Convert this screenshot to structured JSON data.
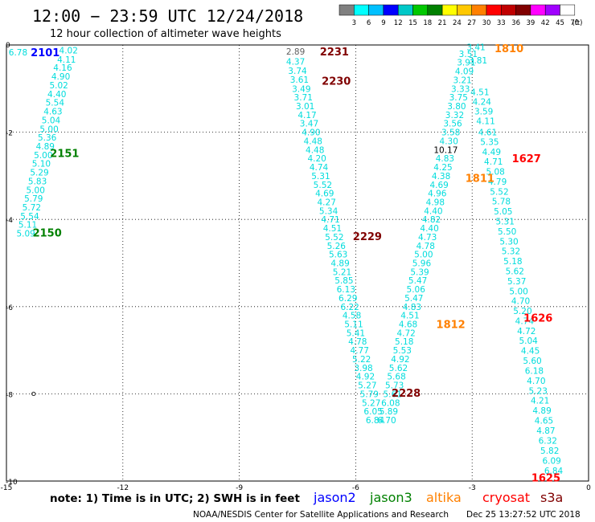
{
  "header": {
    "title": "12:00 − 23:59 UTC 12/24/2018",
    "subtitle": "12 hour collection of altimeter wave heights"
  },
  "colorbar": {
    "colors": [
      "#808080",
      "#00ffff",
      "#00c0ff",
      "#0000ff",
      "#00c8c8",
      "#00c800",
      "#008000",
      "#ffff00",
      "#ffc800",
      "#ff8000",
      "#ff0000",
      "#c00000",
      "#800000",
      "#ff00ff",
      "#a000ff",
      "#ffffff"
    ],
    "labels": [
      "3",
      "6",
      "9",
      "12",
      "15",
      "18",
      "21",
      "24",
      "27",
      "30",
      "33",
      "36",
      "39",
      "42",
      "45",
      "70"
    ],
    "unit": "(ft)"
  },
  "chart_data": {
    "type": "scatter",
    "title": "12 hour collection of altimeter wave heights",
    "xlim": [
      -15,
      0
    ],
    "ylim": [
      -10,
      0
    ],
    "xticks": [
      -15,
      -12,
      -9,
      -6,
      -3,
      0
    ],
    "yticks": [
      0,
      -2,
      -4,
      -6,
      -8,
      -10
    ],
    "grid": true,
    "colors": {
      "jason2": "#0000ff",
      "jason3": "#008000",
      "altika": "#ff8000",
      "cryosat": "#ff0000",
      "s3a": "#800000",
      "swh": "#00dcdc",
      "swh_dark": "#606060",
      "swh_black": "#000000"
    },
    "tracks": [
      {
        "label": "2101",
        "satellite": "jason2",
        "x": -14.0,
        "y": -0.17
      },
      {
        "label": "2151",
        "satellite": "jason3",
        "x": -13.5,
        "y": -2.48
      },
      {
        "label": "2150",
        "satellite": "jason3",
        "x": -13.95,
        "y": -4.3
      },
      {
        "label": "2231",
        "satellite": "s3a",
        "x": -6.55,
        "y": -0.15
      },
      {
        "label": "2230",
        "satellite": "s3a",
        "x": -6.5,
        "y": -0.82
      },
      {
        "label": "2229",
        "satellite": "s3a",
        "x": -5.7,
        "y": -4.38
      },
      {
        "label": "2228",
        "satellite": "s3a",
        "x": -4.7,
        "y": -7.97
      },
      {
        "label": "1810",
        "satellite": "altika",
        "x": -2.05,
        "y": -0.07
      },
      {
        "label": "1811",
        "satellite": "altika",
        "x": -2.8,
        "y": -3.05
      },
      {
        "label": "1812",
        "satellite": "altika",
        "x": -3.55,
        "y": -6.4
      },
      {
        "label": "1627",
        "satellite": "cryosat",
        "x": -1.6,
        "y": -2.6
      },
      {
        "label": "1626",
        "satellite": "cryosat",
        "x": -1.3,
        "y": -6.25
      },
      {
        "label": "1625",
        "satellite": "cryosat",
        "x": -1.1,
        "y": -9.92
      }
    ],
    "points": [
      {
        "x": -14.7,
        "y": -0.17,
        "v": "6.78",
        "c": "swh"
      },
      {
        "x": -13.4,
        "y": -0.12,
        "v": "4.02",
        "c": "swh"
      },
      {
        "x": -13.45,
        "y": -0.33,
        "v": "4.11",
        "c": "swh"
      },
      {
        "x": -13.55,
        "y": -0.52,
        "v": "4.16",
        "c": "swh"
      },
      {
        "x": -13.6,
        "y": -0.72,
        "v": "4.90",
        "c": "swh"
      },
      {
        "x": -13.65,
        "y": -0.92,
        "v": "5.02",
        "c": "swh"
      },
      {
        "x": -13.7,
        "y": -1.12,
        "v": "4.40",
        "c": "swh"
      },
      {
        "x": -13.75,
        "y": -1.32,
        "v": "5.54",
        "c": "swh"
      },
      {
        "x": -13.8,
        "y": -1.52,
        "v": "4.63",
        "c": "swh"
      },
      {
        "x": -13.85,
        "y": -1.72,
        "v": "5.04",
        "c": "swh"
      },
      {
        "x": -13.9,
        "y": -1.92,
        "v": "5.00",
        "c": "swh"
      },
      {
        "x": -13.95,
        "y": -2.12,
        "v": "5.36",
        "c": "swh"
      },
      {
        "x": -14.0,
        "y": -2.32,
        "v": "4.89",
        "c": "swh"
      },
      {
        "x": -14.05,
        "y": -2.52,
        "v": "5.00",
        "c": "swh"
      },
      {
        "x": -14.1,
        "y": -2.72,
        "v": "5.10",
        "c": "swh"
      },
      {
        "x": -14.15,
        "y": -2.92,
        "v": "5.29",
        "c": "swh"
      },
      {
        "x": -14.2,
        "y": -3.12,
        "v": "5.83",
        "c": "swh"
      },
      {
        "x": -14.25,
        "y": -3.32,
        "v": "5.00",
        "c": "swh"
      },
      {
        "x": -14.3,
        "y": -3.52,
        "v": "5.79",
        "c": "swh"
      },
      {
        "x": -14.35,
        "y": -3.72,
        "v": "5.72",
        "c": "swh"
      },
      {
        "x": -14.4,
        "y": -3.92,
        "v": "5.54",
        "c": "swh"
      },
      {
        "x": -14.45,
        "y": -4.12,
        "v": "5.11",
        "c": "swh"
      },
      {
        "x": -14.5,
        "y": -4.32,
        "v": "5.09",
        "c": "swh"
      },
      {
        "x": -7.55,
        "y": -0.15,
        "v": "2.89",
        "c": "swh_dark"
      },
      {
        "x": -7.55,
        "y": -0.38,
        "v": "4.37",
        "c": "swh"
      },
      {
        "x": -7.5,
        "y": -0.59,
        "v": "3.74",
        "c": "swh"
      },
      {
        "x": -7.45,
        "y": -0.79,
        "v": "3.61",
        "c": "swh"
      },
      {
        "x": -7.4,
        "y": -1.0,
        "v": "3.49",
        "c": "swh"
      },
      {
        "x": -7.35,
        "y": -1.2,
        "v": "3.71",
        "c": "swh"
      },
      {
        "x": -7.3,
        "y": -1.4,
        "v": "3.01",
        "c": "swh"
      },
      {
        "x": -7.25,
        "y": -1.6,
        "v": "4.17",
        "c": "swh"
      },
      {
        "x": -7.2,
        "y": -1.8,
        "v": "3.47",
        "c": "swh"
      },
      {
        "x": -7.15,
        "y": -2.0,
        "v": "4.90",
        "c": "swh"
      },
      {
        "x": -7.1,
        "y": -2.2,
        "v": "4.48",
        "c": "swh"
      },
      {
        "x": -7.05,
        "y": -2.4,
        "v": "4.48",
        "c": "swh"
      },
      {
        "x": -7.0,
        "y": -2.6,
        "v": "4.20",
        "c": "swh"
      },
      {
        "x": -6.95,
        "y": -2.8,
        "v": "4.74",
        "c": "swh"
      },
      {
        "x": -6.9,
        "y": -3.0,
        "v": "5.31",
        "c": "swh"
      },
      {
        "x": -6.85,
        "y": -3.2,
        "v": "5.52",
        "c": "swh"
      },
      {
        "x": -6.8,
        "y": -3.4,
        "v": "4.69",
        "c": "swh"
      },
      {
        "x": -6.75,
        "y": -3.6,
        "v": "4.27",
        "c": "swh"
      },
      {
        "x": -6.7,
        "y": -3.8,
        "v": "5.34",
        "c": "swh"
      },
      {
        "x": -6.65,
        "y": -4.0,
        "v": "4.71",
        "c": "swh"
      },
      {
        "x": -6.6,
        "y": -4.2,
        "v": "4.51",
        "c": "swh"
      },
      {
        "x": -6.55,
        "y": -4.4,
        "v": "5.52",
        "c": "swh"
      },
      {
        "x": -6.5,
        "y": -4.6,
        "v": "5.26",
        "c": "swh"
      },
      {
        "x": -6.45,
        "y": -4.8,
        "v": "5.63",
        "c": "swh"
      },
      {
        "x": -6.4,
        "y": -5.0,
        "v": "4.89",
        "c": "swh"
      },
      {
        "x": -6.35,
        "y": -5.2,
        "v": "5.21",
        "c": "swh"
      },
      {
        "x": -6.3,
        "y": -5.4,
        "v": "5.85",
        "c": "swh"
      },
      {
        "x": -6.25,
        "y": -5.6,
        "v": "6.13",
        "c": "swh"
      },
      {
        "x": -6.2,
        "y": -5.8,
        "v": "6.29",
        "c": "swh"
      },
      {
        "x": -6.15,
        "y": -6.0,
        "v": "6.22",
        "c": "swh"
      },
      {
        "x": -6.1,
        "y": -6.2,
        "v": "4.58",
        "c": "swh"
      },
      {
        "x": -6.05,
        "y": -6.4,
        "v": "5.11",
        "c": "swh"
      },
      {
        "x": -6.0,
        "y": -6.6,
        "v": "5.41",
        "c": "swh"
      },
      {
        "x": -5.95,
        "y": -6.8,
        "v": "4.78",
        "c": "swh"
      },
      {
        "x": -5.9,
        "y": -7.0,
        "v": "4.77",
        "c": "swh"
      },
      {
        "x": -5.85,
        "y": -7.2,
        "v": "5.22",
        "c": "swh"
      },
      {
        "x": -5.8,
        "y": -7.4,
        "v": "3.98",
        "c": "swh"
      },
      {
        "x": -5.75,
        "y": -7.6,
        "v": "4.92",
        "c": "swh"
      },
      {
        "x": -5.7,
        "y": -7.8,
        "v": "5.27",
        "c": "swh"
      },
      {
        "x": -5.65,
        "y": -8.0,
        "v": "5.79",
        "c": "swh"
      },
      {
        "x": -5.6,
        "y": -8.2,
        "v": "5.27",
        "c": "swh"
      },
      {
        "x": -5.55,
        "y": -8.4,
        "v": "6.05",
        "c": "swh"
      },
      {
        "x": -5.5,
        "y": -8.6,
        "v": "6.84",
        "c": "swh"
      },
      {
        "x": -5.2,
        "y": -8.6,
        "v": "6.70",
        "c": "swh"
      },
      {
        "x": -5.15,
        "y": -8.4,
        "v": "5.89",
        "c": "swh"
      },
      {
        "x": -5.1,
        "y": -8.2,
        "v": "6.08",
        "c": "swh"
      },
      {
        "x": -5.05,
        "y": -8.0,
        "v": "5.61",
        "c": "swh"
      },
      {
        "x": -5.0,
        "y": -7.8,
        "v": "5.73",
        "c": "swh"
      },
      {
        "x": -4.95,
        "y": -7.6,
        "v": "5.68",
        "c": "swh"
      },
      {
        "x": -4.9,
        "y": -7.4,
        "v": "5.62",
        "c": "swh"
      },
      {
        "x": -4.85,
        "y": -7.2,
        "v": "4.92",
        "c": "swh"
      },
      {
        "x": -4.8,
        "y": -7.0,
        "v": "5.53",
        "c": "swh"
      },
      {
        "x": -4.75,
        "y": -6.8,
        "v": "5.18",
        "c": "swh"
      },
      {
        "x": -4.7,
        "y": -6.6,
        "v": "4.72",
        "c": "swh"
      },
      {
        "x": -4.65,
        "y": -6.4,
        "v": "4.68",
        "c": "swh"
      },
      {
        "x": -4.6,
        "y": -6.2,
        "v": "4.51",
        "c": "swh"
      },
      {
        "x": -4.55,
        "y": -6.0,
        "v": "4.83",
        "c": "swh"
      },
      {
        "x": -4.5,
        "y": -5.8,
        "v": "5.47",
        "c": "swh"
      },
      {
        "x": -4.45,
        "y": -5.6,
        "v": "5.06",
        "c": "swh"
      },
      {
        "x": -4.4,
        "y": -5.4,
        "v": "5.47",
        "c": "swh"
      },
      {
        "x": -4.35,
        "y": -5.2,
        "v": "5.39",
        "c": "swh"
      },
      {
        "x": -4.3,
        "y": -5.0,
        "v": "5.96",
        "c": "swh"
      },
      {
        "x": -4.25,
        "y": -4.8,
        "v": "5.00",
        "c": "swh"
      },
      {
        "x": -4.2,
        "y": -4.6,
        "v": "4.78",
        "c": "swh"
      },
      {
        "x": -4.15,
        "y": -4.4,
        "v": "4.73",
        "c": "swh"
      },
      {
        "x": -4.1,
        "y": -4.2,
        "v": "4.40",
        "c": "swh"
      },
      {
        "x": -4.05,
        "y": -4.0,
        "v": "4.82",
        "c": "swh"
      },
      {
        "x": -4.0,
        "y": -3.8,
        "v": "4.40",
        "c": "swh"
      },
      {
        "x": -3.95,
        "y": -3.6,
        "v": "4.98",
        "c": "swh"
      },
      {
        "x": -3.9,
        "y": -3.4,
        "v": "4.96",
        "c": "swh"
      },
      {
        "x": -3.85,
        "y": -3.2,
        "v": "4.69",
        "c": "swh"
      },
      {
        "x": -3.8,
        "y": -3.0,
        "v": "4.38",
        "c": "swh"
      },
      {
        "x": -3.75,
        "y": -2.8,
        "v": "4.25",
        "c": "swh"
      },
      {
        "x": -3.7,
        "y": -2.6,
        "v": "4.83",
        "c": "swh"
      },
      {
        "x": -3.68,
        "y": -2.4,
        "v": "10.17",
        "c": "swh_black"
      },
      {
        "x": -3.6,
        "y": -2.2,
        "v": "4.30",
        "c": "swh"
      },
      {
        "x": -3.55,
        "y": -2.0,
        "v": "3.58",
        "c": "swh"
      },
      {
        "x": -3.5,
        "y": -1.8,
        "v": "3.56",
        "c": "swh"
      },
      {
        "x": -3.45,
        "y": -1.6,
        "v": "3.32",
        "c": "swh"
      },
      {
        "x": -3.4,
        "y": -1.4,
        "v": "3.80",
        "c": "swh"
      },
      {
        "x": -3.35,
        "y": -1.2,
        "v": "3.75",
        "c": "swh"
      },
      {
        "x": -3.3,
        "y": -1.0,
        "v": "3.33",
        "c": "swh"
      },
      {
        "x": -3.25,
        "y": -0.8,
        "v": "3.21",
        "c": "swh"
      },
      {
        "x": -3.2,
        "y": -0.6,
        "v": "4.09",
        "c": "swh"
      },
      {
        "x": -3.15,
        "y": -0.4,
        "v": "3.91",
        "c": "swh"
      },
      {
        "x": -3.1,
        "y": -0.2,
        "v": "3.51",
        "c": "swh"
      },
      {
        "x": -2.9,
        "y": -0.05,
        "v": "3.41",
        "c": "swh"
      },
      {
        "x": -2.85,
        "y": -0.35,
        "v": "3.81",
        "c": "swh"
      },
      {
        "x": -2.8,
        "y": -1.08,
        "v": "4.51",
        "c": "swh"
      },
      {
        "x": -2.75,
        "y": -1.3,
        "v": "4.24",
        "c": "swh"
      },
      {
        "x": -2.7,
        "y": -1.52,
        "v": "3.59",
        "c": "swh"
      },
      {
        "x": -2.65,
        "y": -1.74,
        "v": "4.11",
        "c": "swh"
      },
      {
        "x": -2.6,
        "y": -2.0,
        "v": "4.61",
        "c": "swh"
      },
      {
        "x": -2.55,
        "y": -2.22,
        "v": "5.35",
        "c": "swh"
      },
      {
        "x": -2.5,
        "y": -2.45,
        "v": "4.49",
        "c": "swh"
      },
      {
        "x": -2.45,
        "y": -2.67,
        "v": "4.71",
        "c": "swh"
      },
      {
        "x": -2.4,
        "y": -2.9,
        "v": "5.08",
        "c": "swh"
      },
      {
        "x": -2.35,
        "y": -3.13,
        "v": "4.79",
        "c": "swh"
      },
      {
        "x": -2.3,
        "y": -3.36,
        "v": "5.52",
        "c": "swh"
      },
      {
        "x": -2.25,
        "y": -3.58,
        "v": "5.78",
        "c": "swh"
      },
      {
        "x": -2.2,
        "y": -3.81,
        "v": "5.05",
        "c": "swh"
      },
      {
        "x": -2.15,
        "y": -4.04,
        "v": "5.31",
        "c": "swh"
      },
      {
        "x": -2.1,
        "y": -4.27,
        "v": "5.50",
        "c": "swh"
      },
      {
        "x": -2.05,
        "y": -4.5,
        "v": "5.30",
        "c": "swh"
      },
      {
        "x": -2.0,
        "y": -4.72,
        "v": "5.32",
        "c": "swh"
      },
      {
        "x": -1.95,
        "y": -4.95,
        "v": "5.18",
        "c": "swh"
      },
      {
        "x": -1.9,
        "y": -5.18,
        "v": "5.62",
        "c": "swh"
      },
      {
        "x": -1.85,
        "y": -5.41,
        "v": "5.37",
        "c": "swh"
      },
      {
        "x": -1.8,
        "y": -5.64,
        "v": "5.00",
        "c": "swh"
      },
      {
        "x": -1.75,
        "y": -5.87,
        "v": "4.70",
        "c": "swh"
      },
      {
        "x": -1.7,
        "y": -6.1,
        "v": "5.20",
        "c": "swh"
      },
      {
        "x": -1.65,
        "y": -6.33,
        "v": "4.74",
        "c": "swh"
      },
      {
        "x": -1.6,
        "y": -6.56,
        "v": "4.72",
        "c": "swh"
      },
      {
        "x": -1.55,
        "y": -6.78,
        "v": "5.04",
        "c": "swh"
      },
      {
        "x": -1.5,
        "y": -7.01,
        "v": "4.45",
        "c": "swh"
      },
      {
        "x": -1.45,
        "y": -7.24,
        "v": "5.60",
        "c": "swh"
      },
      {
        "x": -1.4,
        "y": -7.47,
        "v": "6.18",
        "c": "swh"
      },
      {
        "x": -1.35,
        "y": -7.7,
        "v": "4.70",
        "c": "swh"
      },
      {
        "x": -1.3,
        "y": -7.93,
        "v": "5.23",
        "c": "swh"
      },
      {
        "x": -1.25,
        "y": -8.15,
        "v": "4.21",
        "c": "swh"
      },
      {
        "x": -1.2,
        "y": -8.38,
        "v": "4.89",
        "c": "swh"
      },
      {
        "x": -1.15,
        "y": -8.61,
        "v": "4.65",
        "c": "swh"
      },
      {
        "x": -1.1,
        "y": -8.84,
        "v": "4.87",
        "c": "swh"
      },
      {
        "x": -1.05,
        "y": -9.07,
        "v": "6.32",
        "c": "swh"
      },
      {
        "x": -1.0,
        "y": -9.3,
        "v": "5.82",
        "c": "swh"
      },
      {
        "x": -0.95,
        "y": -9.53,
        "v": "6.09",
        "c": "swh"
      },
      {
        "x": -0.9,
        "y": -9.76,
        "v": "6.84",
        "c": "swh"
      }
    ]
  },
  "footer": {
    "note": "note:  1) Time is in UTC; 2) SWH is in feet",
    "legend": [
      {
        "name": "jason2",
        "color": "#0000ff"
      },
      {
        "name": "jason3",
        "color": "#008000"
      },
      {
        "name": "altika",
        "color": "#ff8000"
      },
      {
        "name": "cryosat",
        "color": "#ff0000"
      },
      {
        "name": "s3a",
        "color": "#800000"
      }
    ],
    "credit": "NOAA/NESDIS Center for Satellite Applications and Research",
    "timestamp": "Dec 25 13:27:52 UTC 2018"
  }
}
